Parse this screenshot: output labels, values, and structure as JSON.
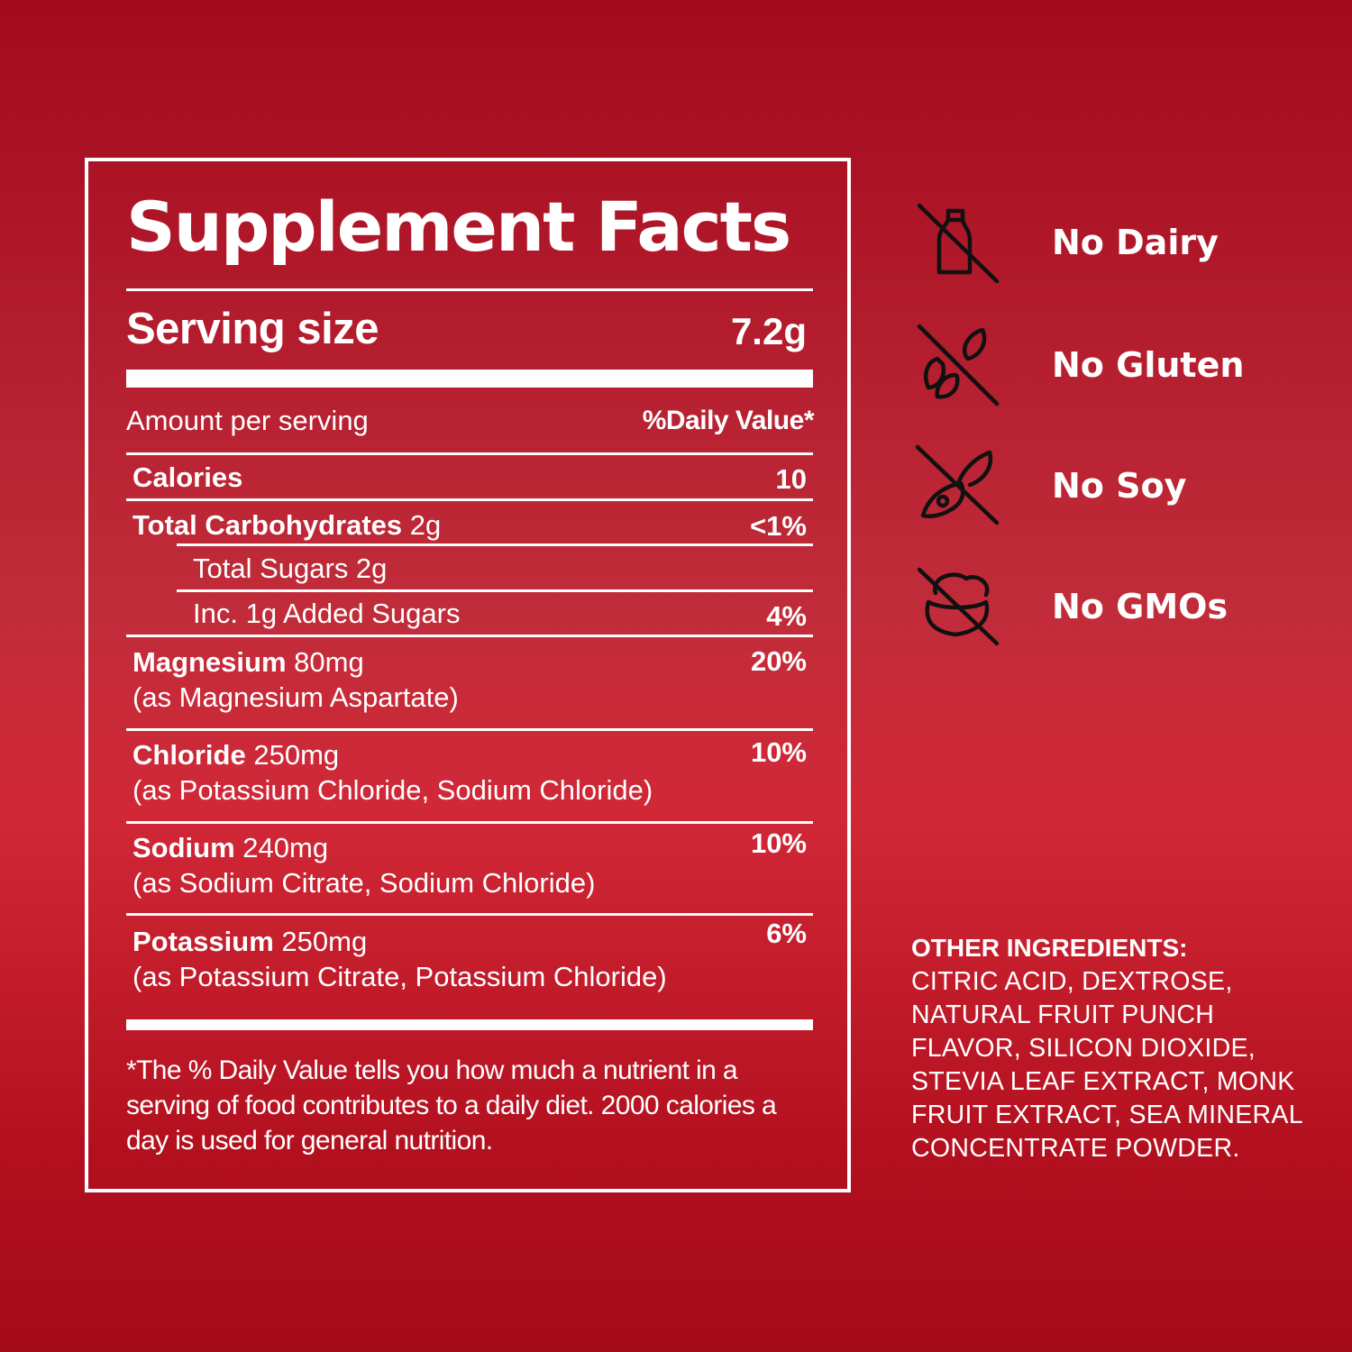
{
  "facts": {
    "title": "Supplement Facts",
    "serving_size_label": "Serving size",
    "serving_size_value": "7.2g",
    "amount_label": "Amount per serving",
    "dv_label": "%Daily Value*",
    "rows": [
      {
        "name": "Calories",
        "amount": "",
        "dv": "10"
      },
      {
        "name": "Total Carbohydrates",
        "amount": " 2g",
        "dv": "<1%"
      },
      {
        "name": "Total Sugars 2g",
        "amount": "",
        "dv": ""
      },
      {
        "name": "Inc. 1g Added Sugars",
        "amount": "",
        "dv": "4%"
      },
      {
        "name": "Magnesium",
        "amount": " 80mg",
        "source": "(as Magnesium Aspartate)",
        "dv": "20%"
      },
      {
        "name": "Chloride",
        "amount": " 250mg",
        "source": "(as Potassium Chloride, Sodium Chloride)",
        "dv": "10%"
      },
      {
        "name": "Sodium",
        "amount": " 240mg",
        "source": "(as Sodium Citrate, Sodium Chloride)",
        "dv": "10%"
      },
      {
        "name": "Potassium",
        "amount": " 250mg",
        "source": "(as Potassium Citrate, Potassium Chloride)",
        "dv": "6%"
      }
    ],
    "footnote": "*The % Daily Value tells you how much a nutrient in a serving of food contributes to a daily diet. 2000 calories a day is used for general nutrition."
  },
  "badges": [
    {
      "label": "No Dairy",
      "icon": "no-dairy-icon"
    },
    {
      "label": "No Gluten",
      "icon": "no-gluten-icon"
    },
    {
      "label": "No Soy",
      "icon": "no-soy-icon"
    },
    {
      "label": "No GMOs",
      "icon": "no-gmo-icon"
    }
  ],
  "ingredients": {
    "title": "OTHER INGREDIENTS:",
    "text": "CITRIC ACID, DEXTROSE, NATURAL FRUIT PUNCH FLAVOR, SILICON DIOXIDE, STEVIA LEAF EXTRACT, MONK FRUIT EXTRACT, SEA MINERAL CONCENTRATE POWDER."
  },
  "colors": {
    "background_top": "#a30a1e",
    "background_mid": "#d12837",
    "text": "#ffffff",
    "icon": "#111111"
  }
}
